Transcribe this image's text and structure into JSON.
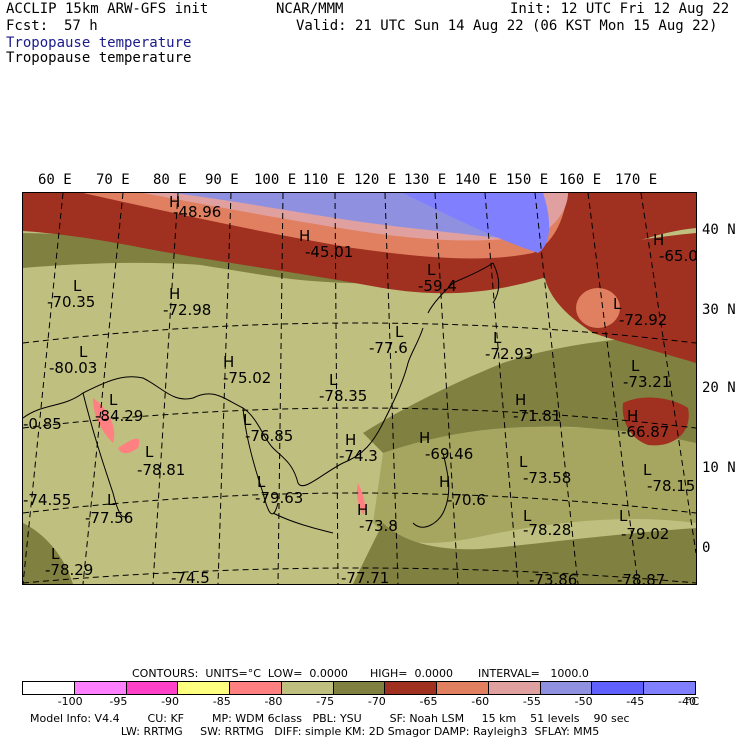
{
  "header": {
    "model": "ACCLIP 15km ARW-GFS init",
    "org": "NCAR/MMM",
    "init": "Init: 12 UTC Fri 12 Aug 22",
    "fcst_label": "Fcst:",
    "fcst_value": "57 h",
    "valid": "Valid: 21 UTC Sun 14 Aug 22 (06 KST Mon 15 Aug 22)",
    "field_title_1": "Tropopause temperature",
    "field_title_2": "Tropopause temperature"
  },
  "lon_labels": [
    "60 E",
    "70 E",
    "80 E",
    "90 E",
    "100 E",
    "110 E",
    "120 E",
    "130 E",
    "140 E",
    "150 E",
    "160 E",
    "170 E"
  ],
  "lat_labels": [
    "40 N",
    "30 N",
    "20 N",
    "10 N",
    "0"
  ],
  "map_labels": [
    {
      "kind": "H",
      "text": "-48.96"
    },
    {
      "kind": "H",
      "text": "-45.01"
    },
    {
      "kind": "H",
      "text": "-65.0"
    },
    {
      "kind": "L",
      "text": "-70.35"
    },
    {
      "kind": "H",
      "text": "-72.98"
    },
    {
      "kind": "L",
      "text": "-59.4"
    },
    {
      "kind": "L",
      "text": "-72.92"
    },
    {
      "kind": "L",
      "text": "-77.6"
    },
    {
      "kind": "L",
      "text": "-72.93"
    },
    {
      "kind": "L",
      "text": "-80.03"
    },
    {
      "kind": "H",
      "text": "-75.02"
    },
    {
      "kind": "L",
      "text": "-78.35"
    },
    {
      "kind": "L",
      "text": "-73.21"
    },
    {
      "kind": "L",
      "text": "-84.29"
    },
    {
      "kind": "H",
      "text": "-71.81"
    },
    {
      "kind": "H",
      "text": "-66.87"
    },
    {
      "kind": "L",
      "text": "-76.85"
    },
    {
      "kind": "H",
      "text": "-74.3"
    },
    {
      "kind": "H",
      "text": "-69.46"
    },
    {
      "kind": "L",
      "text": "-0.85"
    },
    {
      "kind": "L",
      "text": "-78.81"
    },
    {
      "kind": "L",
      "text": "-73.58"
    },
    {
      "kind": "L",
      "text": "-78.15"
    },
    {
      "kind": "L",
      "text": "-74.55"
    },
    {
      "kind": "L",
      "text": "-79.63"
    },
    {
      "kind": "H",
      "text": "-70.6"
    },
    {
      "kind": "L",
      "text": "-77.56"
    },
    {
      "kind": "H",
      "text": "-73.8"
    },
    {
      "kind": "L",
      "text": "-78.28"
    },
    {
      "kind": "L",
      "text": "-79.02"
    },
    {
      "kind": "L",
      "text": "-78.29"
    },
    {
      "kind": "L",
      "text": "-74.5"
    },
    {
      "kind": "L",
      "text": "-77.71"
    },
    {
      "kind": "L",
      "text": "-73.86"
    },
    {
      "kind": "L",
      "text": "-78.87"
    }
  ],
  "contours": {
    "units": "CONTOURS:  UNITS=°C  LOW=  0.0000",
    "high": "HIGH=  0.0000",
    "interval": "INTERVAL=   1000.0"
  },
  "colorbar": {
    "colors": [
      "#ffffff",
      "#ff80ff",
      "#ff40c8",
      "#ffff80",
      "#ff8080",
      "#bfbf80",
      "#808040",
      "#a03020",
      "#e08060",
      "#e0a0a0",
      "#9090e0",
      "#6060ff",
      "#8080ff"
    ],
    "ticks": [
      "-100",
      "-95",
      "-90",
      "-85",
      "-80",
      "-75",
      "-70",
      "-65",
      "-60",
      "-55",
      "-50",
      "-45",
      "-40"
    ],
    "unit": "°C"
  },
  "model_info": {
    "line1": "Model Info: V4.4        CU: KF        MP: WDM 6class   PBL: YSU        SF: Noah LSM     15 km    51 levels    90 sec",
    "line2": "                          LW: RRTMG     SW: RRTMG   DIFF: simple KM: 2D Smagor DAMP: Rayleigh3  SFLAY: MM5"
  }
}
